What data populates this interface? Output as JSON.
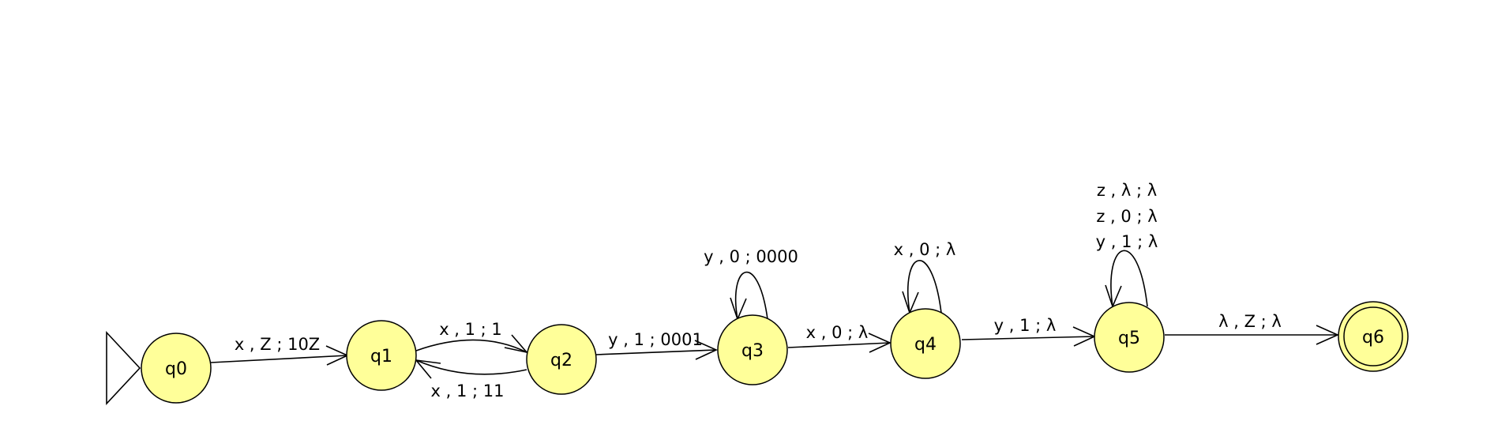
{
  "diagram": {
    "type": "pushdown-automaton",
    "colors": {
      "state_fill": "#ffff99",
      "stroke": "#000000",
      "background": "#ffffff"
    },
    "start_state": "q0",
    "final_states": [
      "q6"
    ],
    "states": {
      "q0": "q0",
      "q1": "q1",
      "q2": "q2",
      "q3": "q3",
      "q4": "q4",
      "q5": "q5",
      "q6": "q6"
    },
    "transitions": {
      "q0_q1": "x , Z ; 10Z",
      "q1_q2": "x , 1 ; 1",
      "q2_q1": "x , 1 ; 11",
      "q2_q3": "y , 1 ; 0001",
      "q3_q3": "y , 0 ; 0000",
      "q3_q4": "x , 0 ; λ",
      "q4_q4": "x , 0 ; λ",
      "q4_q5": "y , 1 ; λ",
      "q5_q5_a": "z , λ ; λ",
      "q5_q5_b": "z , 0 ; λ",
      "q5_q5_c": "y , 1 ; λ",
      "q5_q6": "λ , Z ; λ"
    }
  }
}
